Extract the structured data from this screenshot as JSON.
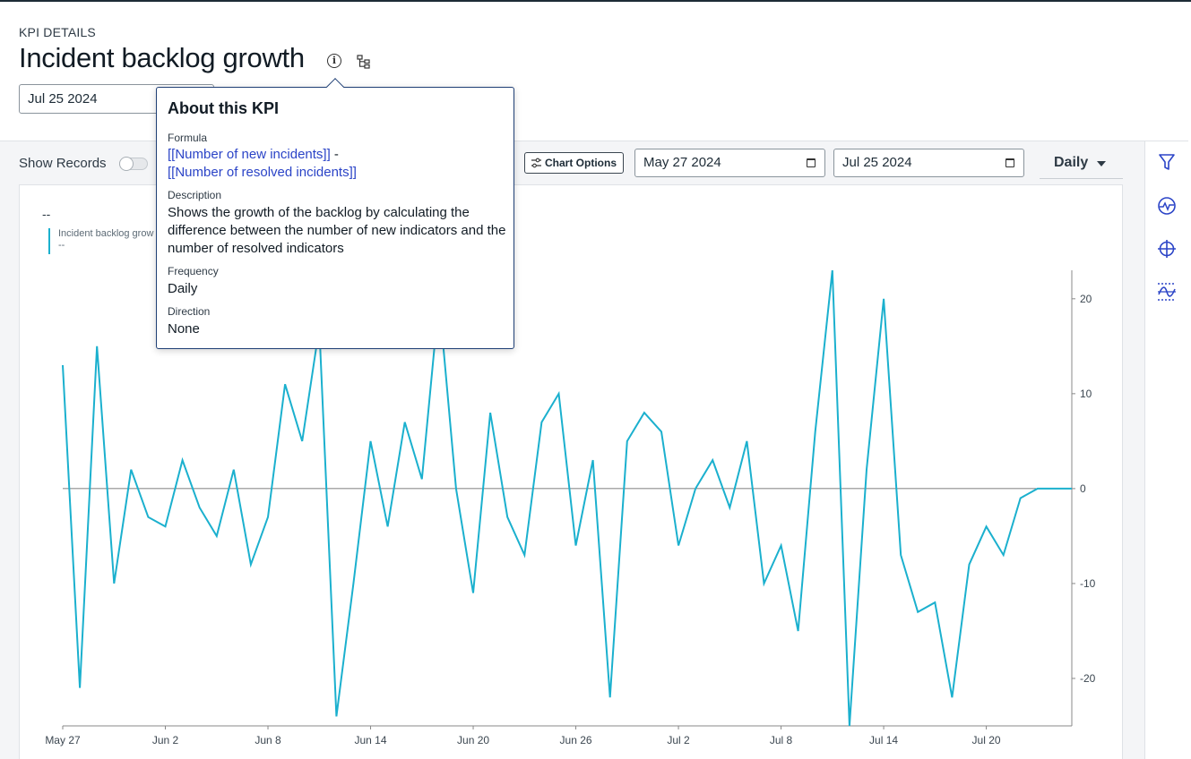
{
  "header": {
    "eyebrow": "KPI DETAILS",
    "title": "Incident backlog growth",
    "date": "Jul 25 2024"
  },
  "controls": {
    "show_records_label": "Show Records",
    "show_records_on": false,
    "chart_options_label": "Chart Options",
    "start_date": "May 27 2024",
    "end_date": "Jul 25 2024",
    "frequency": "Daily"
  },
  "legend": {
    "summary": "--",
    "series_name": "Incident backlog grow",
    "series_value": "--"
  },
  "popover": {
    "title": "About this KPI",
    "formula_label": "Formula",
    "formula_part1": "[[Number of new incidents]]",
    "formula_sep": " -",
    "formula_part2": "[[Number of resolved incidents]]",
    "description_label": "Description",
    "description": "Shows the growth of the backlog by calculating the difference between the number of new indicators and the number of resolved indicators",
    "frequency_label": "Frequency",
    "frequency": "Daily",
    "direction_label": "Direction",
    "direction": "None"
  },
  "colors": {
    "series": "#1bb0ce",
    "highlight": "#e5483a",
    "link": "#2b44c7",
    "rail_icons": "#2b44c7"
  },
  "rail_icons": [
    "filter-icon",
    "activity-icon",
    "crosshair-icon",
    "threshold-icon"
  ],
  "chart_data": {
    "type": "line",
    "x": [
      "May 27",
      "May 28",
      "May 29",
      "May 30",
      "May 31",
      "Jun 1",
      "Jun 2",
      "Jun 3",
      "Jun 4",
      "Jun 5",
      "Jun 6",
      "Jun 7",
      "Jun 8",
      "Jun 9",
      "Jun 10",
      "Jun 11",
      "Jun 12",
      "Jun 13",
      "Jun 14",
      "Jun 15",
      "Jun 16",
      "Jun 17",
      "Jun 18",
      "Jun 19",
      "Jun 20",
      "Jun 21",
      "Jun 22",
      "Jun 23",
      "Jun 24",
      "Jun 25",
      "Jun 26",
      "Jun 27",
      "Jun 28",
      "Jun 29",
      "Jun 30",
      "Jul 1",
      "Jul 2",
      "Jul 3",
      "Jul 4",
      "Jul 5",
      "Jul 6",
      "Jul 7",
      "Jul 8",
      "Jul 9",
      "Jul 10",
      "Jul 11",
      "Jul 12",
      "Jul 13",
      "Jul 14",
      "Jul 15",
      "Jul 16",
      "Jul 17",
      "Jul 18",
      "Jul 19",
      "Jul 20",
      "Jul 21",
      "Jul 22",
      "Jul 23",
      "Jul 24",
      "Jul 25"
    ],
    "series": [
      {
        "name": "Incident backlog grow",
        "values": [
          13,
          -21,
          15,
          -10,
          2,
          -3,
          -4,
          3,
          -2,
          -5,
          2,
          -8,
          -3,
          11,
          5,
          17,
          -24,
          -10,
          5,
          -4,
          7,
          1,
          20,
          0,
          -11,
          8,
          -3,
          -7,
          7,
          10,
          -6,
          3,
          -22,
          5,
          8,
          6,
          -6,
          0,
          3,
          -2,
          5,
          -10,
          -6,
          -15,
          6,
          23,
          -25,
          2,
          20,
          -7,
          -13,
          -12,
          -22,
          -8,
          -4,
          -7,
          -1,
          0,
          0,
          0
        ]
      }
    ],
    "x_ticks": [
      "May 27",
      "Jun 2",
      "Jun 8",
      "Jun 14",
      "Jun 20",
      "Jun 26",
      "Jul 2",
      "Jul 8",
      "Jul 14",
      "Jul 20"
    ],
    "y_ticks": [
      20,
      10,
      0,
      -10,
      -20
    ],
    "ylim": [
      -25,
      23
    ],
    "axis_position": "right",
    "grid": false,
    "legend_position": "top-left"
  }
}
